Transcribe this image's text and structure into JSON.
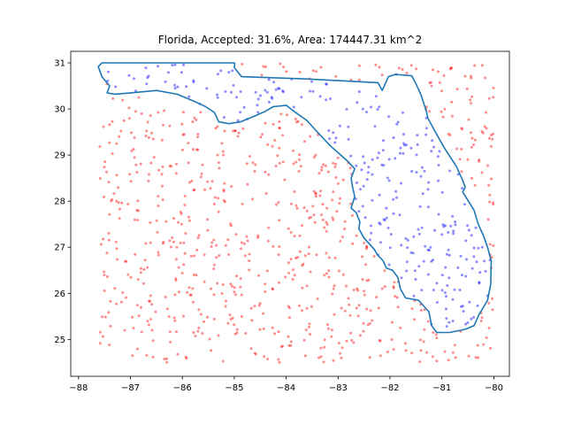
{
  "chart_data": {
    "type": "scatter",
    "title": "Florida, Accepted: 31.6%, Area: 174447.31 km^2",
    "xlabel": "",
    "ylabel": "",
    "xlim": [
      -88.15,
      -79.7
    ],
    "ylim": [
      24.2,
      31.25
    ],
    "xticks": [
      -88,
      -87,
      -86,
      -85,
      -84,
      -83,
      -82,
      -81,
      -80
    ],
    "yticks": [
      25,
      26,
      27,
      28,
      29,
      30,
      31
    ],
    "xtick_labels": [
      "−88",
      "−87",
      "−86",
      "−85",
      "−84",
      "−83",
      "−82",
      "−81",
      "−80"
    ],
    "ytick_labels": [
      "25",
      "26",
      "27",
      "28",
      "29",
      "30",
      "31"
    ],
    "grid": false,
    "legend": "none",
    "colors": {
      "accepted": "#0000ff",
      "rejected": "#ff0000",
      "outline": "#1f77b4"
    },
    "sample_box": {
      "x": [
        -87.6,
        -80.0
      ],
      "y": [
        24.5,
        31.0
      ]
    },
    "accepted_fraction": 0.316,
    "series": [
      {
        "kind": "polygon",
        "color": "#1f77b4",
        "points": [
          [
            -87.62,
            30.92
          ],
          [
            -87.55,
            31.0
          ],
          [
            -86.5,
            31.0
          ],
          [
            -85.0,
            31.0
          ],
          [
            -84.99,
            30.99
          ],
          [
            -85.0,
            30.9
          ],
          [
            -84.86,
            30.7
          ],
          [
            -83.6,
            30.65
          ],
          [
            -82.23,
            30.57
          ],
          [
            -82.15,
            30.4
          ],
          [
            -82.03,
            30.7
          ],
          [
            -81.9,
            30.75
          ],
          [
            -81.58,
            30.72
          ],
          [
            -81.5,
            30.55
          ],
          [
            -81.4,
            30.3
          ],
          [
            -81.3,
            29.95
          ],
          [
            -81.27,
            29.8
          ],
          [
            -81.1,
            29.45
          ],
          [
            -80.95,
            29.15
          ],
          [
            -80.72,
            28.75
          ],
          [
            -80.6,
            28.45
          ],
          [
            -80.55,
            28.3
          ],
          [
            -80.6,
            28.2
          ],
          [
            -80.38,
            27.8
          ],
          [
            -80.3,
            27.5
          ],
          [
            -80.2,
            27.25
          ],
          [
            -80.12,
            27.0
          ],
          [
            -80.05,
            26.7
          ],
          [
            -80.06,
            26.2
          ],
          [
            -80.12,
            25.85
          ],
          [
            -80.2,
            25.7
          ],
          [
            -80.28,
            25.55
          ],
          [
            -80.38,
            25.3
          ],
          [
            -80.55,
            25.22
          ],
          [
            -80.85,
            25.15
          ],
          [
            -81.1,
            25.15
          ],
          [
            -81.2,
            25.3
          ],
          [
            -81.25,
            25.6
          ],
          [
            -81.45,
            25.85
          ],
          [
            -81.7,
            25.9
          ],
          [
            -81.8,
            26.1
          ],
          [
            -81.85,
            26.35
          ],
          [
            -81.95,
            26.5
          ],
          [
            -82.07,
            26.55
          ],
          [
            -82.13,
            26.7
          ],
          [
            -82.25,
            26.85
          ],
          [
            -82.3,
            26.95
          ],
          [
            -82.5,
            27.2
          ],
          [
            -82.6,
            27.4
          ],
          [
            -82.58,
            27.55
          ],
          [
            -82.65,
            27.75
          ],
          [
            -82.75,
            27.85
          ],
          [
            -82.68,
            28.1
          ],
          [
            -82.72,
            28.3
          ],
          [
            -82.75,
            28.5
          ],
          [
            -82.68,
            28.7
          ],
          [
            -82.8,
            28.85
          ],
          [
            -83.0,
            29.05
          ],
          [
            -83.15,
            29.2
          ],
          [
            -83.4,
            29.5
          ],
          [
            -83.6,
            29.75
          ],
          [
            -83.85,
            29.95
          ],
          [
            -84.0,
            30.08
          ],
          [
            -84.25,
            30.05
          ],
          [
            -84.4,
            29.95
          ],
          [
            -84.6,
            29.85
          ],
          [
            -84.88,
            29.72
          ],
          [
            -85.1,
            29.68
          ],
          [
            -85.3,
            29.72
          ],
          [
            -85.38,
            29.92
          ],
          [
            -85.55,
            30.05
          ],
          [
            -85.8,
            30.18
          ],
          [
            -86.1,
            30.32
          ],
          [
            -86.5,
            30.4
          ],
          [
            -87.0,
            30.35
          ],
          [
            -87.3,
            30.32
          ],
          [
            -87.45,
            30.35
          ],
          [
            -87.4,
            30.5
          ],
          [
            -87.55,
            30.7
          ],
          [
            -87.62,
            30.92
          ]
        ]
      }
    ]
  }
}
